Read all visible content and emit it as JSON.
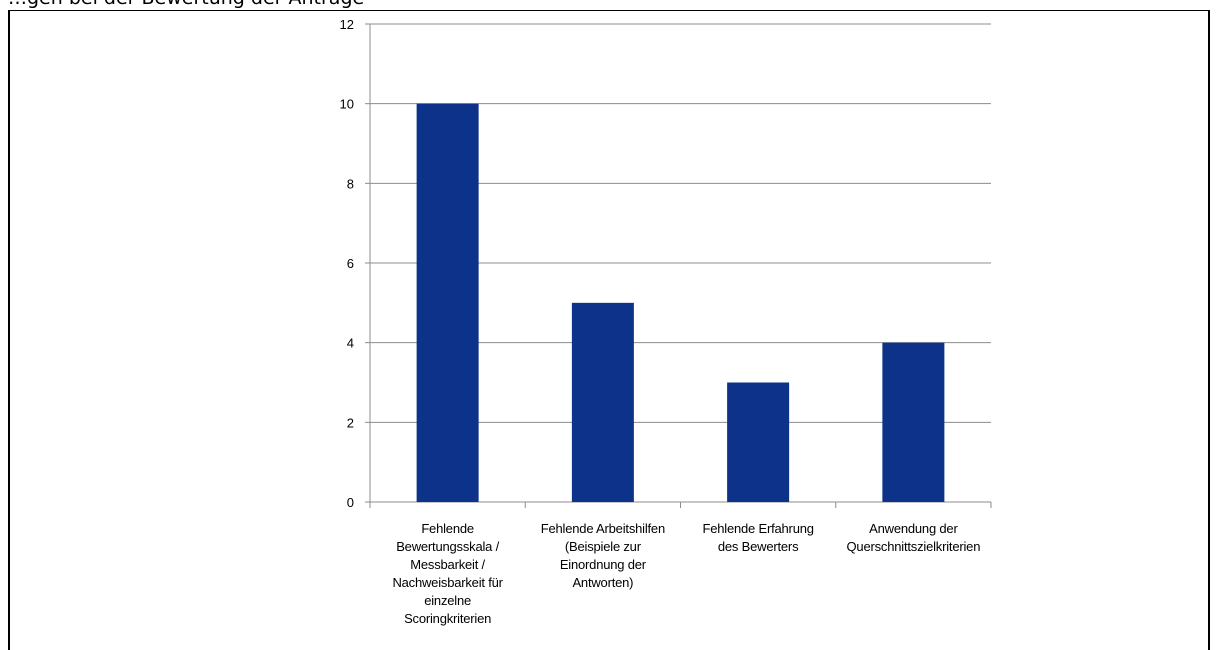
{
  "header_text": "…gen bei der Bewertung der Anträge",
  "chart_data": {
    "type": "bar",
    "categories": [
      "Fehlende Bewertungsskala / Messbarkeit / Nachweisbarkeit für einzelne Scoringkriterien",
      "Fehlende Arbeitshilfen (Beispiele zur Einordnung der Antworten)",
      "Fehlende Erfahrung des Bewerters",
      "Anwendung der Querschnittszielkriterien"
    ],
    "category_lines": [
      [
        "Fehlende",
        "Bewertungsskala /",
        "Messbarkeit /",
        "Nachweisbarkeit für",
        "einzelne",
        "Scoringkriterien"
      ],
      [
        "Fehlende Arbeitshilfen",
        "(Beispiele zur",
        "Einordnung der",
        "Antworten)"
      ],
      [
        "Fehlende Erfahrung",
        "des Bewerters"
      ],
      [
        "Anwendung der",
        "Querschnittszielkriterien"
      ]
    ],
    "values": [
      10,
      5,
      3,
      4
    ],
    "ylim": [
      0,
      12
    ],
    "yticks": [
      "0",
      "2",
      "4",
      "6",
      "8",
      "10",
      "12"
    ],
    "grid": true,
    "bar_color": "#0c3389",
    "title": "",
    "xlabel": "",
    "ylabel": ""
  }
}
